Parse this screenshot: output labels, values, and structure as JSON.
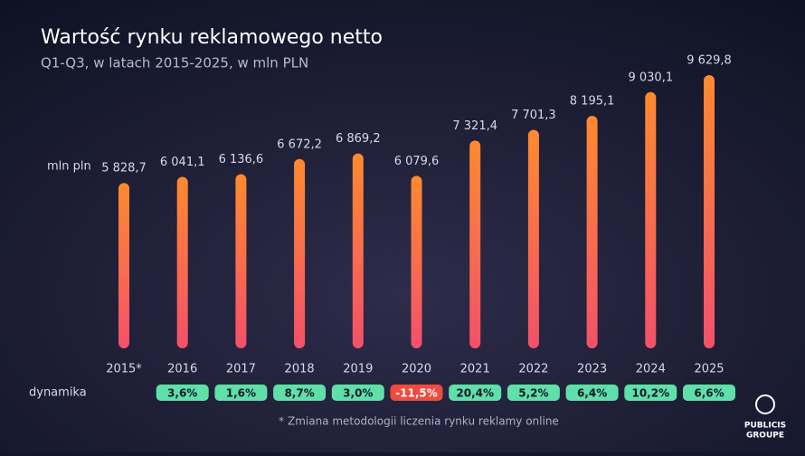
{
  "chart_data": {
    "type": "bar",
    "title": "Wartość rynku reklamowego netto",
    "subtitle": "Q1-Q3, w latach 2015-2025, w mln PLN",
    "unit_label": "mln pln",
    "categories": [
      "2015*",
      "2016",
      "2017",
      "2018",
      "2019",
      "2020",
      "2021",
      "2022",
      "2023",
      "2024",
      "2025"
    ],
    "values": [
      5828.7,
      6041.1,
      6136.6,
      6672.2,
      6869.2,
      6079.6,
      7321.4,
      7701.3,
      8195.1,
      9030.1,
      9629.8
    ],
    "value_labels": [
      "5 828,7",
      "6 041,1",
      "6 136,6",
      "6 672,2",
      "6 869,2",
      "6 079,6",
      "7 321,4",
      "7 701,3",
      "8 195,1",
      "9 030,1",
      "9 629,8"
    ],
    "growth": {
      "label": "dynamika",
      "values": [
        null,
        3.6,
        1.6,
        8.7,
        3.0,
        -11.5,
        20.4,
        5.2,
        6.4,
        10.2,
        6.6
      ],
      "value_labels": [
        null,
        "3,6%",
        "1,6%",
        "8,7%",
        "3,0%",
        "-11,5%",
        "20,4%",
        "5,2%",
        "6,4%",
        "10,2%",
        "6,6%"
      ]
    },
    "footnote": "* Zmiana metodologii liczenia rynku reklamy online",
    "logo": [
      "PUBLICIS",
      "GROUPE"
    ]
  }
}
